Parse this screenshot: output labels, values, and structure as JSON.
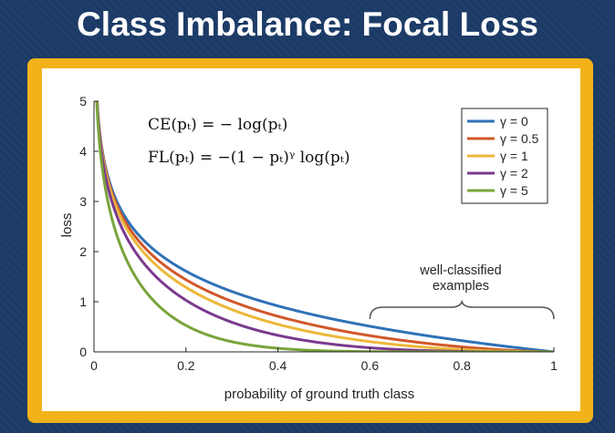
{
  "title": "Class Imbalance: Focal Loss",
  "colors": {
    "background": "#1b3a66",
    "frame": "#f3b21a",
    "axis": "#262626"
  },
  "equations": {
    "ce": "CE(pₜ) = − log(pₜ)",
    "fl": "FL(pₜ) = −(1 − pₜ)ᵞ log(pₜ)"
  },
  "annotation": {
    "line1": "well-classified",
    "line2": "examples",
    "x_range": [
      0.6,
      1.0
    ]
  },
  "chart_data": {
    "type": "line",
    "function": "-(1-p)^gamma * log(p)",
    "xlabel": "probability of ground truth class",
    "ylabel": "loss",
    "xlim": [
      0,
      1
    ],
    "ylim": [
      0,
      5
    ],
    "x_ticks": [
      "0",
      "0.2",
      "0.4",
      "0.6",
      "0.8",
      "1"
    ],
    "y_ticks": [
      "0",
      "1",
      "2",
      "3",
      "4",
      "5"
    ],
    "grid": false,
    "legend_position": "top-right",
    "series": [
      {
        "name": "γ = 0",
        "gamma": 0,
        "color": "#2f72b7"
      },
      {
        "name": "γ = 0.5",
        "gamma": 0.5,
        "color": "#d1582a"
      },
      {
        "name": "γ = 1",
        "gamma": 1,
        "color": "#edb83a"
      },
      {
        "name": "γ = 2",
        "gamma": 2,
        "color": "#7a3a8e"
      },
      {
        "name": "γ = 5",
        "gamma": 5,
        "color": "#79a43b"
      }
    ]
  }
}
